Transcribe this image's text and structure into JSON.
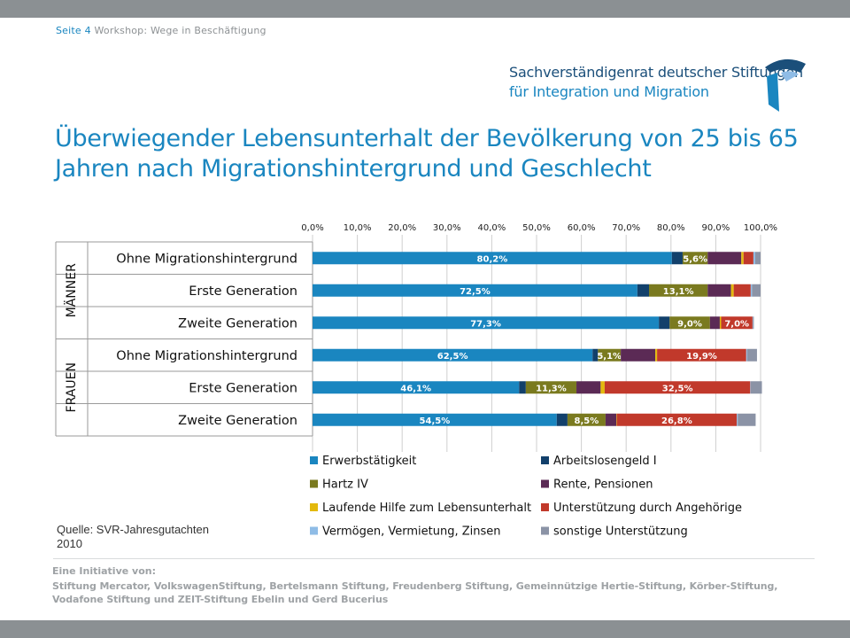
{
  "header": {
    "page_label": "Seite 4",
    "subtitle": "Workshop: Wege in Beschäftigung"
  },
  "logo": {
    "line1": "Sachverständigenrat deutscher Stiftungen",
    "line2": "für Integration und Migration"
  },
  "title": "Überwiegender Lebensunterhalt der Bevölkerung von 25 bis 65 Jahren nach Migrationshintergrund und Geschlecht",
  "source": [
    "Quelle: SVR-Jahresgutachten",
    "2010"
  ],
  "footer": {
    "heading": "Eine Initiative von:",
    "text": "Stiftung Mercator, VolkswagenStiftung, Bertelsmann Stiftung, Freudenberg Stiftung, Gemeinnützige Hertie-Stiftung, Körber-Stiftung, Vodafone Stiftung und ZEIT-Stiftung Ebelin und Gerd Bucerius"
  },
  "colors": {
    "accent": "#1a86c0",
    "dark_blue": "#1b4f7a",
    "bars": [
      "#1a86c0",
      "#12406b",
      "#7a7a1f",
      "#5b2a55",
      "#e3b90c",
      "#c1392b",
      "#8fbce6",
      "#8b93a6"
    ]
  },
  "chart_data": {
    "type": "bar",
    "orientation": "horizontal",
    "stacked": true,
    "xlim": [
      0,
      100
    ],
    "x_ticks": [
      "0,0%",
      "10,0%",
      "20,0%",
      "30,0%",
      "40,0%",
      "50,0%",
      "60,0%",
      "70,0%",
      "80,0%",
      "90,0%",
      "100,0%"
    ],
    "groups": [
      {
        "label": "MÄNNER",
        "rows": [
          0,
          1,
          2
        ]
      },
      {
        "label": "FRAUEN",
        "rows": [
          3,
          4,
          5
        ]
      }
    ],
    "categories": [
      "Ohne Migrationshintergrund",
      "Erste Generation",
      "Zweite Generation",
      "Ohne Migrationshintergrund",
      "Erste Generation",
      "Zweite Generation"
    ],
    "series": [
      {
        "name": "Erwerbstätigkeit",
        "values": [
          80.2,
          72.5,
          77.3,
          62.5,
          46.1,
          54.5
        ]
      },
      {
        "name": "Arbeitslosengeld I",
        "values": [
          2.4,
          2.6,
          2.4,
          1.2,
          1.5,
          2.4
        ]
      },
      {
        "name": "Hartz IV",
        "values": [
          5.6,
          13.1,
          9.0,
          5.1,
          11.3,
          8.5
        ]
      },
      {
        "name": "Rente, Pensionen",
        "values": [
          7.5,
          5.2,
          2.2,
          7.7,
          5.4,
          2.4
        ]
      },
      {
        "name": "Laufende Hilfe zum Lebensunterhalt",
        "values": [
          0.5,
          0.6,
          0.3,
          0.4,
          0.9,
          0.1
        ]
      },
      {
        "name": "Unterstützung durch Angehörige",
        "values": [
          2.2,
          3.8,
          7.0,
          19.9,
          32.5,
          26.8
        ]
      },
      {
        "name": "Vermögen, Vermietung, Zinsen",
        "values": [
          0.4,
          0.3,
          0.1,
          0.2,
          0.1,
          0.2
        ]
      },
      {
        "name": "sonstige Unterstützung",
        "values": [
          1.2,
          1.9,
          0.2,
          2.2,
          2.5,
          4.0
        ]
      }
    ],
    "data_labels": [
      [
        "80,2%",
        "",
        "5,6%",
        "",
        "",
        "",
        "",
        ""
      ],
      [
        "72,5%",
        "",
        "13,1%",
        "",
        "",
        "",
        "",
        ""
      ],
      [
        "77,3%",
        "",
        "9,0%",
        "",
        "",
        "7,0%",
        "",
        ""
      ],
      [
        "62,5%",
        "",
        "5,1%",
        "",
        "",
        "19,9%",
        "",
        ""
      ],
      [
        "46,1%",
        "",
        "11,3%",
        "",
        "",
        "32,5%",
        "",
        ""
      ],
      [
        "54,5%",
        "",
        "8,5%",
        "",
        "",
        "26,8%",
        "",
        ""
      ]
    ]
  }
}
